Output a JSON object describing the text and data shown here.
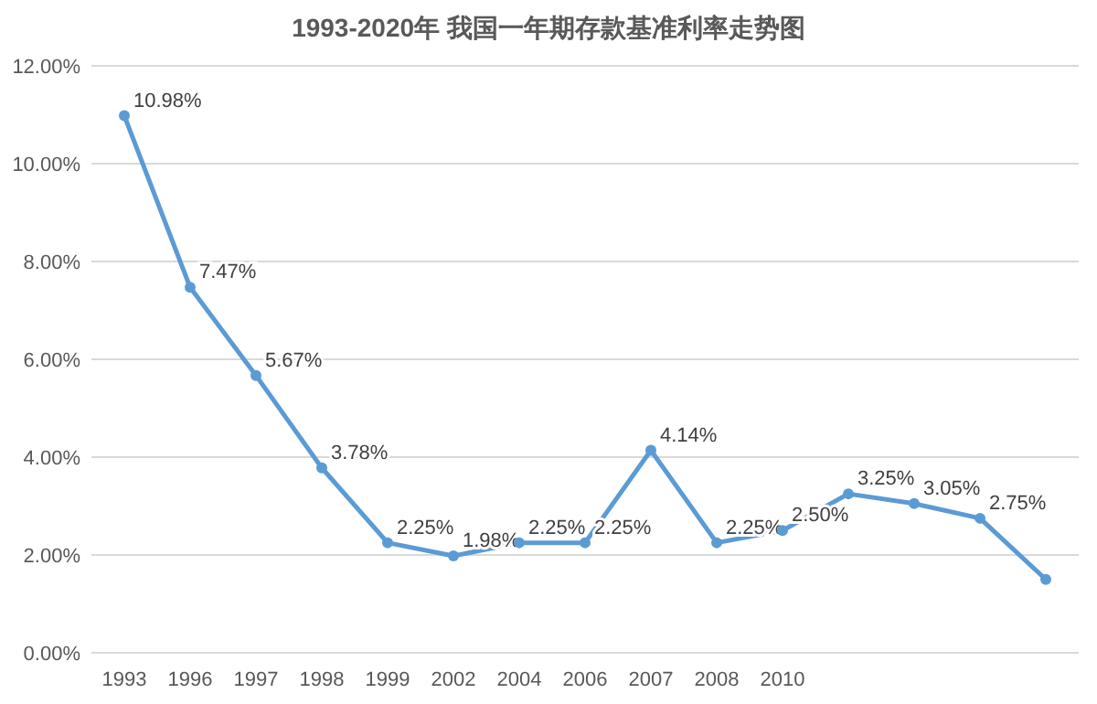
{
  "chart_data": {
    "type": "line",
    "title": "1993-2020年 我国一年期存款基准利率走势图",
    "categories": [
      "1993",
      "1996",
      "1997",
      "1998",
      "1999",
      "2002",
      "2004",
      "2006",
      "2007",
      "2008",
      "2010",
      null,
      null,
      null,
      null
    ],
    "series": [
      {
        "color": "#5b9bd5",
        "values": [
          10.98,
          7.47,
          5.67,
          3.78,
          2.25,
          1.98,
          2.25,
          2.25,
          4.14,
          2.25,
          2.5,
          3.25,
          3.05,
          2.75,
          1.5
        ],
        "value_labels": [
          "10.98%",
          "7.47%",
          "5.67%",
          "3.78%",
          "2.25%",
          "1.98%",
          "2.25%",
          "2.25%",
          "4.14%",
          "2.25%",
          "2.50%",
          "3.25%",
          "3.05%",
          "2.75%",
          null
        ]
      }
    ],
    "ylim": [
      0,
      12
    ],
    "yticks": [
      {
        "value": 0,
        "label": "0.00%"
      },
      {
        "value": 2,
        "label": "2.00%"
      },
      {
        "value": 4,
        "label": "4.00%"
      },
      {
        "value": 6,
        "label": "6.00%"
      },
      {
        "value": 8,
        "label": "8.00%"
      },
      {
        "value": 10,
        "label": "10.00%"
      },
      {
        "value": 12,
        "label": "12.00%"
      }
    ],
    "grid": "y",
    "marker": "circle",
    "line_style": "solid"
  }
}
